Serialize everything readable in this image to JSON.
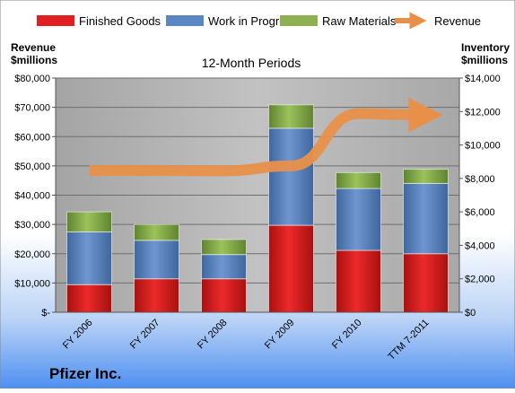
{
  "chart_data": {
    "type": "bar",
    "title": "12-Month Periods",
    "company": "Pfizer Inc.",
    "categories": [
      "FY 2006",
      "FY 2007",
      "FY 2008",
      "FY 2009",
      "FY 2010",
      "TTM 7-2011"
    ],
    "left_axis": {
      "title_line1": "Revenue",
      "title_line2": "$millions",
      "range": [
        0,
        80000
      ],
      "ticks": [
        0,
        10000,
        20000,
        30000,
        40000,
        50000,
        60000,
        70000,
        80000
      ],
      "tick_labels": [
        "$-",
        "$10,000",
        "$20,000",
        "$30,000",
        "$40,000",
        "$50,000",
        "$60,000",
        "$70,000",
        "$80,000"
      ]
    },
    "right_axis": {
      "title_line1": "Inventory",
      "title_line2": "$millions",
      "range": [
        0,
        14000
      ],
      "ticks": [
        0,
        2000,
        4000,
        6000,
        8000,
        10000,
        12000,
        14000
      ],
      "tick_labels": [
        "$0",
        "$2,000",
        "$4,000",
        "$6,000",
        "$8,000",
        "$10,000",
        "$12,000",
        "$14,000"
      ]
    },
    "stacked_series": [
      {
        "name": "Finished Goods",
        "axis": "right",
        "values": [
          1650,
          2000,
          2000,
          5200,
          3700,
          3500
        ],
        "color": "#e02020"
      },
      {
        "name": "Work in Progress",
        "axis": "right",
        "values": [
          3150,
          2300,
          1450,
          5800,
          3700,
          4200
        ],
        "color": "#5b86c4"
      },
      {
        "name": "Raw Materials",
        "axis": "right",
        "values": [
          1200,
          950,
          900,
          1400,
          950,
          850
        ],
        "color": "#8db050"
      }
    ],
    "line_series": {
      "name": "Revenue",
      "axis": "left",
      "values": [
        48400,
        48400,
        48300,
        50000,
        67800,
        67400
      ],
      "color": "#e8904a"
    },
    "grid": true,
    "legend": "top",
    "colors": {
      "plot_bg": "#b0b0b0",
      "background_top": "#ffffff",
      "background_bottom": "#4d8ff0"
    }
  }
}
